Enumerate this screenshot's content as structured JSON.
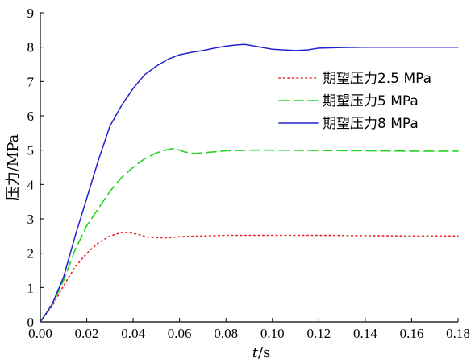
{
  "chart_data": {
    "type": "line",
    "xlabel": "t/s",
    "ylabel": "压力/MPa",
    "xlim": [
      0,
      0.18
    ],
    "ylim": [
      0,
      9
    ],
    "xticks": [
      "0.00",
      "0.02",
      "0.04",
      "0.06",
      "0.08",
      "0.10",
      "0.12",
      "0.14",
      "0.16",
      "0.18"
    ],
    "yticks": [
      "0",
      "1",
      "2",
      "3",
      "4",
      "5",
      "6",
      "7",
      "8",
      "9"
    ],
    "grid": false,
    "legend_position": "top-right",
    "series": [
      {
        "name": "期望压力2.5 MPa",
        "color": "#e8202a",
        "style": "dotted",
        "x": [
          0,
          0.005,
          0.01,
          0.015,
          0.02,
          0.025,
          0.03,
          0.035,
          0.038,
          0.042,
          0.046,
          0.05,
          0.055,
          0.06,
          0.07,
          0.08,
          0.1,
          0.12,
          0.14,
          0.16,
          0.18
        ],
        "y": [
          0,
          0.45,
          1.05,
          1.6,
          2.0,
          2.3,
          2.5,
          2.6,
          2.6,
          2.55,
          2.47,
          2.45,
          2.45,
          2.48,
          2.5,
          2.52,
          2.52,
          2.52,
          2.51,
          2.5,
          2.5
        ]
      },
      {
        "name": "期望压力5 MPa",
        "color": "#22d41e",
        "style": "dashed",
        "x": [
          0,
          0.005,
          0.01,
          0.015,
          0.02,
          0.025,
          0.03,
          0.035,
          0.04,
          0.045,
          0.05,
          0.055,
          0.058,
          0.062,
          0.066,
          0.07,
          0.08,
          0.09,
          0.1,
          0.12,
          0.14,
          0.16,
          0.18
        ],
        "y": [
          0,
          0.5,
          1.2,
          2.1,
          2.8,
          3.3,
          3.8,
          4.2,
          4.5,
          4.75,
          4.92,
          5.02,
          5.05,
          4.95,
          4.9,
          4.92,
          4.98,
          5.0,
          5.0,
          4.99,
          4.98,
          4.97,
          4.97
        ]
      },
      {
        "name": "期望压力8 MPa",
        "color": "#2222cc",
        "style": "solid",
        "x": [
          0,
          0.005,
          0.01,
          0.015,
          0.02,
          0.025,
          0.03,
          0.035,
          0.04,
          0.045,
          0.05,
          0.055,
          0.06,
          0.065,
          0.07,
          0.075,
          0.08,
          0.085,
          0.088,
          0.09,
          0.095,
          0.1,
          0.105,
          0.11,
          0.115,
          0.12,
          0.13,
          0.14,
          0.16,
          0.18
        ],
        "y": [
          0,
          0.5,
          1.3,
          2.5,
          3.6,
          4.7,
          5.7,
          6.3,
          6.8,
          7.2,
          7.45,
          7.65,
          7.78,
          7.85,
          7.9,
          7.97,
          8.03,
          8.07,
          8.08,
          8.06,
          8.0,
          7.94,
          7.92,
          7.9,
          7.92,
          7.97,
          7.99,
          8.0,
          8.0,
          8.0
        ]
      }
    ]
  }
}
